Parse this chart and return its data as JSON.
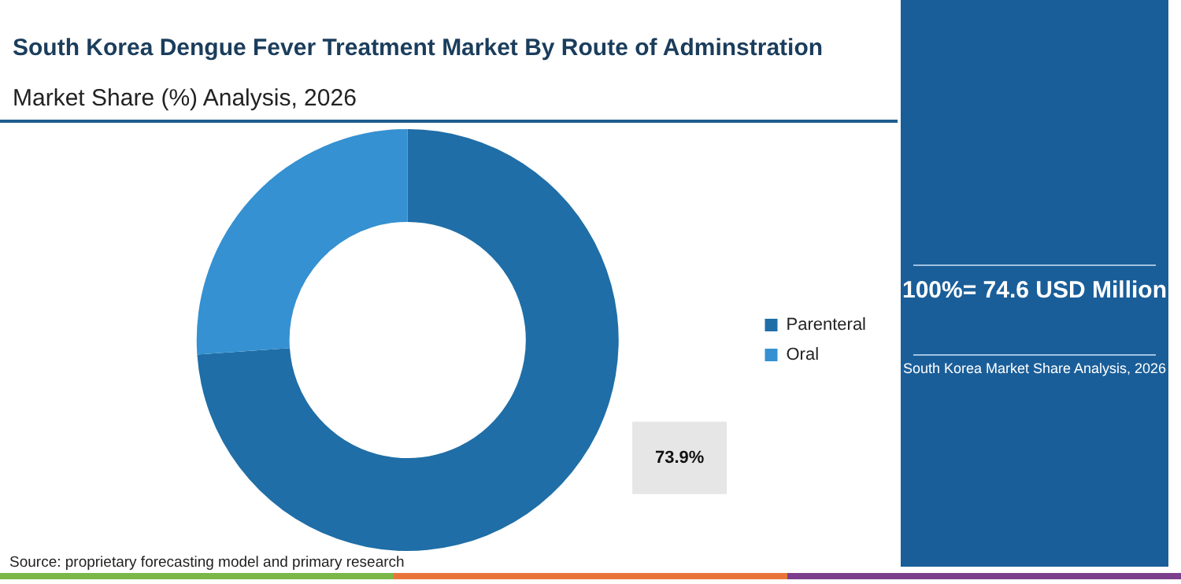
{
  "chart_data": {
    "type": "donut",
    "title": "South Korea Dengue Fever Treatment Market By Route of Adminstration",
    "subtitle": "Market Share (%) Analysis, 2026",
    "categories": [
      "Parenteral",
      "Oral"
    ],
    "values": [
      73.9,
      26.1
    ],
    "value_labels": [
      "73.9%",
      null
    ],
    "colors": [
      "#1f6ea7",
      "#3591d1"
    ],
    "legend": "right",
    "annotations": [
      "100%= 74.6 USD Million",
      "South Korea Market Share Analysis, 2026",
      "Source: proprietary forecasting model and primary research"
    ]
  }
}
